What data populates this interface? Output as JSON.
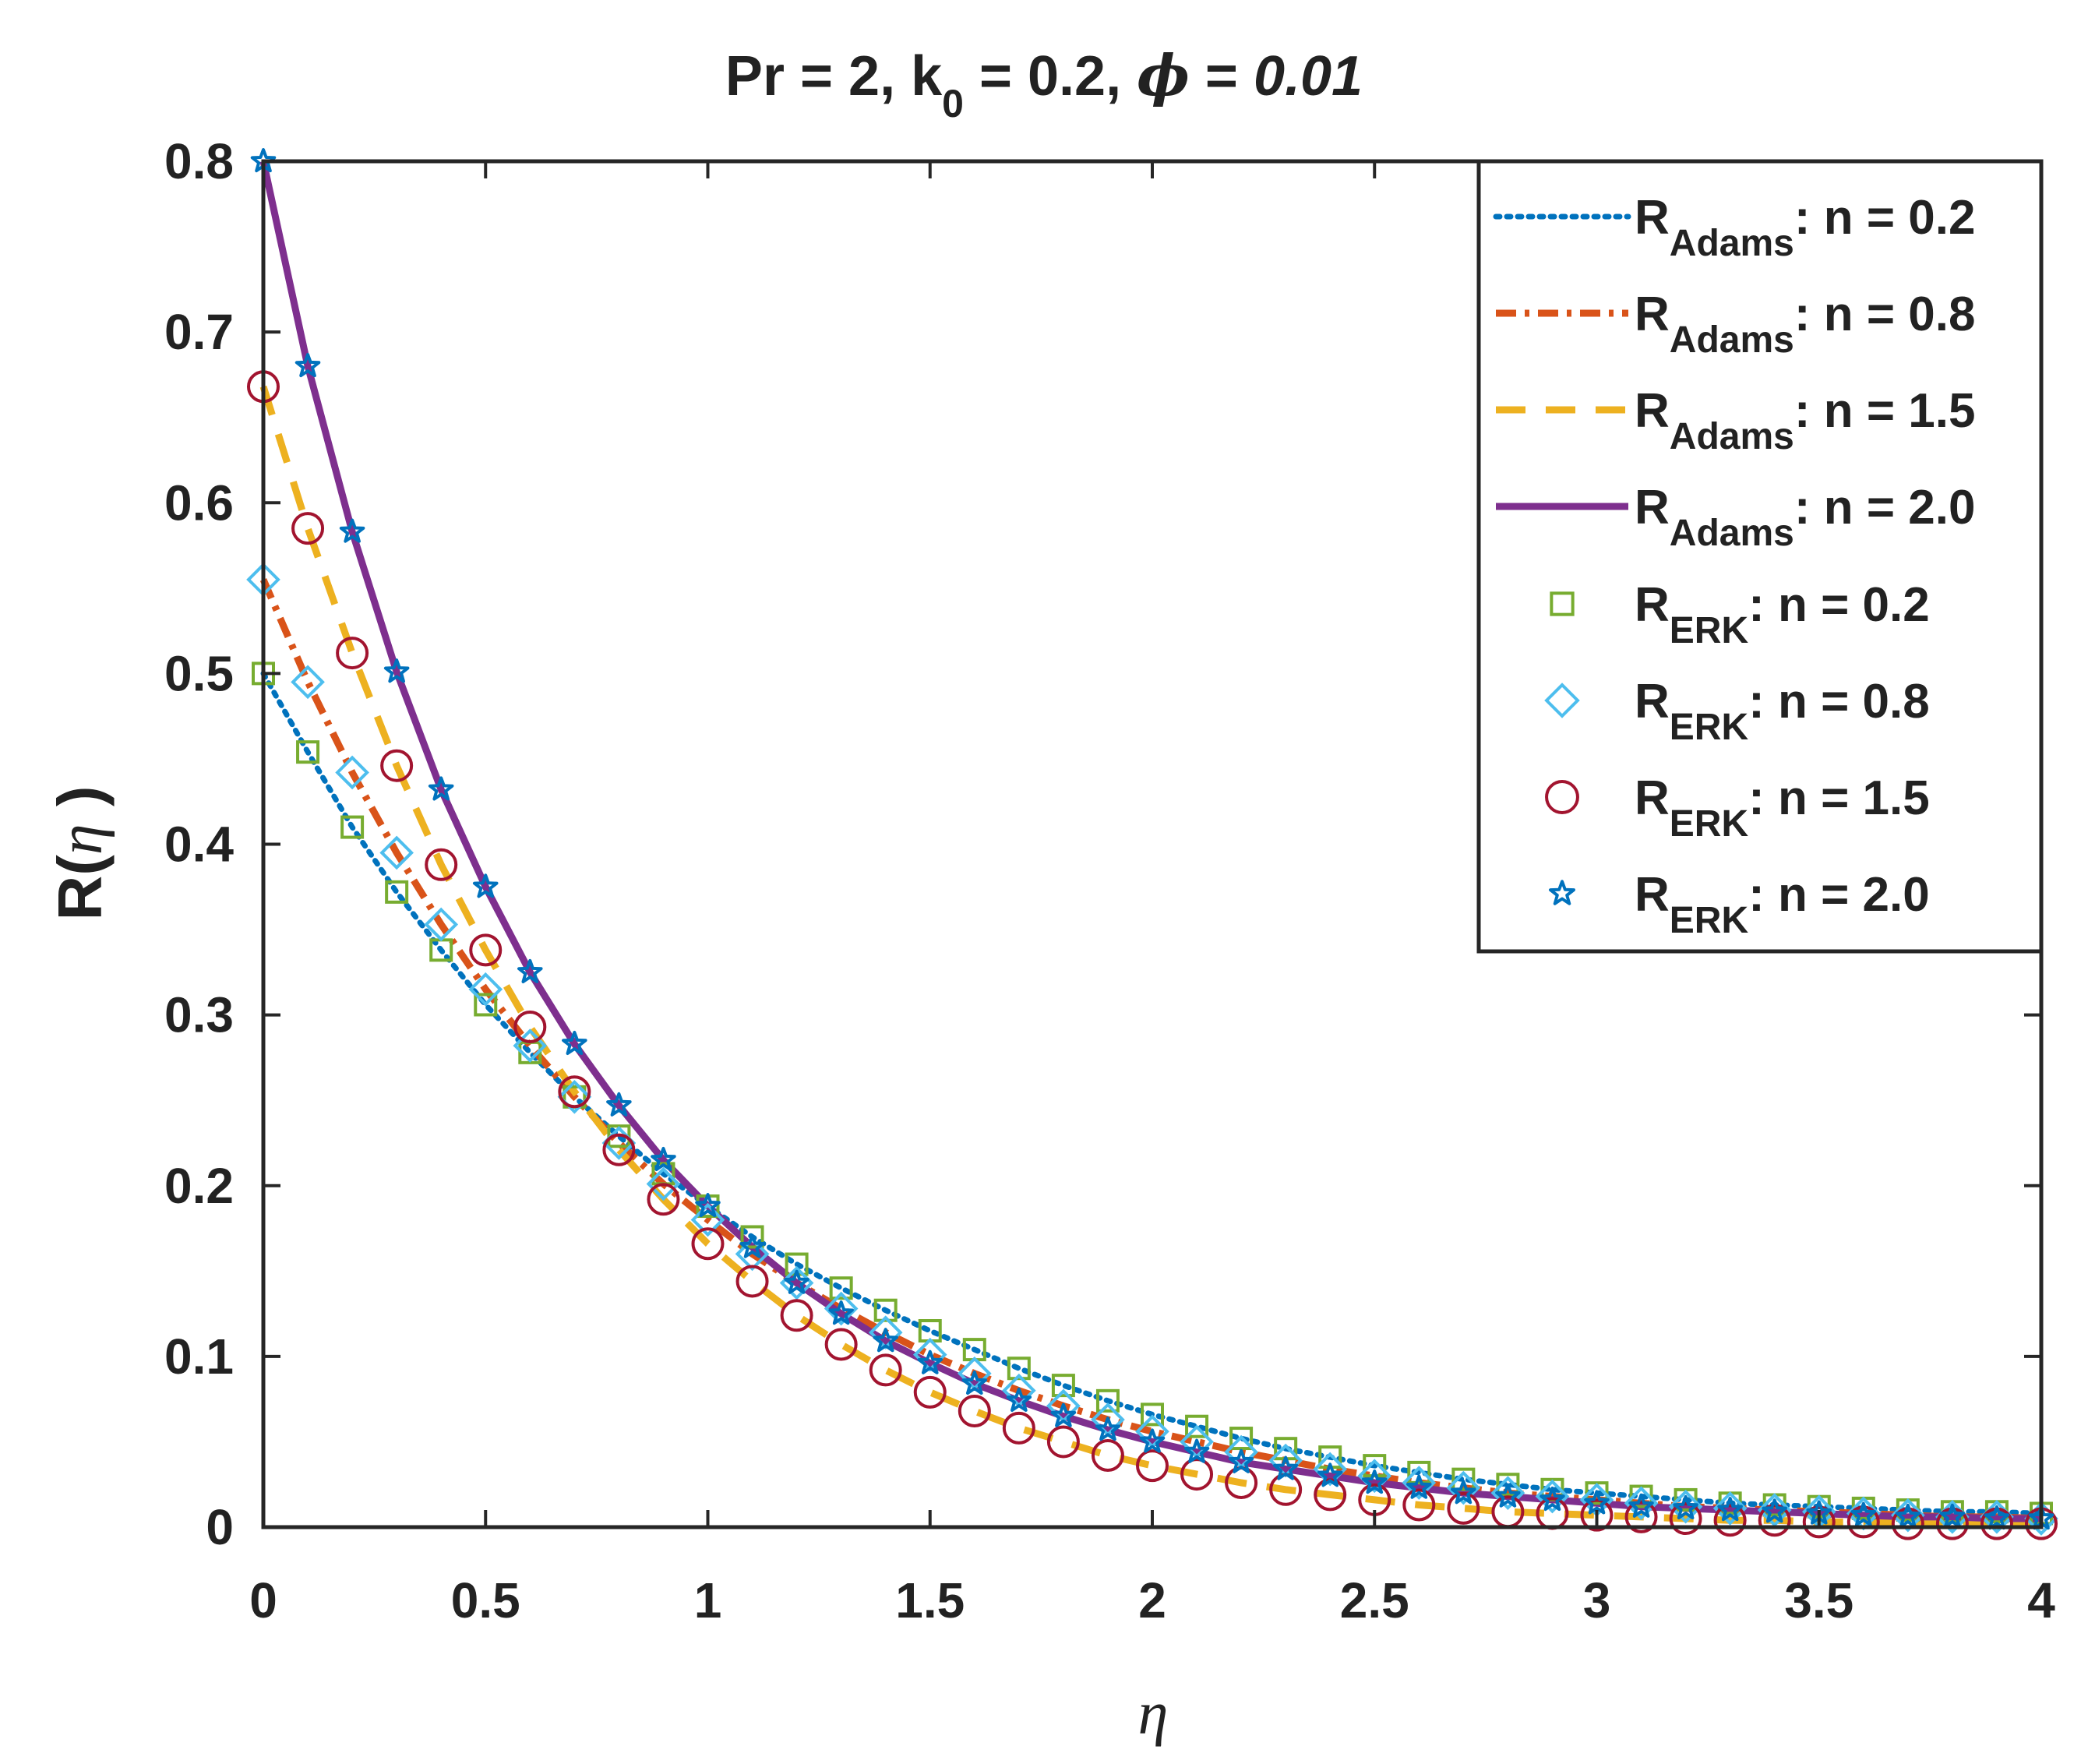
{
  "chart_data": {
    "type": "line",
    "title": {
      "part1": "Pr = 2, k",
      "sub": "0",
      "part2": " = 0.2, ",
      "symbol": "ϕ",
      "part3": " = ",
      "value": "0.01"
    },
    "xlabel": "η",
    "ylabel": {
      "prefix": "R(",
      "symbol": "η",
      "suffix": " )"
    },
    "xlim": [
      0,
      4
    ],
    "ylim": [
      0,
      0.8
    ],
    "xticks": [
      "0",
      "0.5",
      "1",
      "1.5",
      "2",
      "2.5",
      "3",
      "3.5",
      "4"
    ],
    "yticks": [
      "0",
      "0.1",
      "0.2",
      "0.3",
      "0.4",
      "0.5",
      "0.6",
      "0.7",
      "0.8"
    ],
    "legend_position": "top-right",
    "x": [
      0,
      0.1,
      0.2,
      0.3,
      0.4,
      0.5,
      0.6,
      0.7,
      0.8,
      0.9,
      1.0,
      1.1,
      1.2,
      1.3,
      1.4,
      1.5,
      1.6,
      1.7,
      1.8,
      1.9,
      2.0,
      2.1,
      2.2,
      2.3,
      2.4,
      2.5,
      2.6,
      2.7,
      2.8,
      2.9,
      3.0,
      3.1,
      3.2,
      3.3,
      3.4,
      3.5,
      3.6,
      3.7,
      3.8,
      3.9,
      4.0
    ],
    "series": [
      {
        "name": "R_Adams: n = 0.2",
        "label_main": "R",
        "label_sub": "Adams",
        "label_tail": ": n = 0.2",
        "kind": "line",
        "style": "dotted",
        "color": "#0072BD",
        "values": [
          0.5,
          0.454,
          0.41,
          0.372,
          0.338,
          0.306,
          0.278,
          0.252,
          0.229,
          0.207,
          0.188,
          0.17,
          0.154,
          0.14,
          0.127,
          0.115,
          0.104,
          0.093,
          0.083,
          0.074,
          0.066,
          0.059,
          0.052,
          0.046,
          0.041,
          0.036,
          0.032,
          0.028,
          0.025,
          0.022,
          0.02,
          0.018,
          0.016,
          0.014,
          0.013,
          0.012,
          0.011,
          0.01,
          0.009,
          0.009,
          0.008
        ]
      },
      {
        "name": "R_Adams: n = 0.8",
        "label_main": "R",
        "label_sub": "Adams",
        "label_tail": ": n = 0.8",
        "kind": "line",
        "style": "dashdot",
        "color": "#D95319",
        "values": [
          0.555,
          0.495,
          0.442,
          0.395,
          0.353,
          0.315,
          0.282,
          0.252,
          0.225,
          0.201,
          0.18,
          0.16,
          0.143,
          0.128,
          0.114,
          0.101,
          0.09,
          0.08,
          0.071,
          0.063,
          0.056,
          0.05,
          0.044,
          0.039,
          0.034,
          0.03,
          0.026,
          0.023,
          0.02,
          0.018,
          0.016,
          0.014,
          0.012,
          0.011,
          0.01,
          0.009,
          0.008,
          0.007,
          0.006,
          0.006,
          0.005
        ]
      },
      {
        "name": "R_Adams: n = 1.5",
        "label_main": "R",
        "label_sub": "Adams",
        "label_tail": ": n = 1.5",
        "kind": "line",
        "style": "dashed",
        "color": "#EDB120",
        "values": [
          0.668,
          0.585,
          0.512,
          0.446,
          0.388,
          0.338,
          0.293,
          0.255,
          0.221,
          0.192,
          0.166,
          0.144,
          0.124,
          0.107,
          0.092,
          0.079,
          0.068,
          0.058,
          0.05,
          0.042,
          0.036,
          0.031,
          0.026,
          0.022,
          0.019,
          0.016,
          0.013,
          0.011,
          0.009,
          0.008,
          0.007,
          0.006,
          0.005,
          0.004,
          0.004,
          0.003,
          0.003,
          0.002,
          0.002,
          0.002,
          0.002
        ]
      },
      {
        "name": "R_Adams: n = 2.0",
        "label_main": "R",
        "label_sub": "Adams",
        "label_tail": ": n = 2.0",
        "kind": "line",
        "style": "solid",
        "color": "#7E2F8E",
        "values": [
          0.8,
          0.68,
          0.583,
          0.501,
          0.432,
          0.375,
          0.325,
          0.283,
          0.247,
          0.215,
          0.188,
          0.164,
          0.143,
          0.125,
          0.109,
          0.096,
          0.084,
          0.074,
          0.065,
          0.057,
          0.05,
          0.044,
          0.038,
          0.034,
          0.03,
          0.026,
          0.023,
          0.02,
          0.018,
          0.016,
          0.014,
          0.012,
          0.011,
          0.01,
          0.009,
          0.008,
          0.007,
          0.006,
          0.006,
          0.005,
          0.005
        ]
      },
      {
        "name": "R_ERK: n = 0.2",
        "label_main": "R",
        "label_sub": "ERK",
        "label_tail": ": n = 0.2",
        "kind": "marker",
        "marker": "square",
        "color": "#77AC30",
        "ref": 0
      },
      {
        "name": "R_ERK: n = 0.8",
        "label_main": "R",
        "label_sub": "ERK",
        "label_tail": ": n = 0.8",
        "kind": "marker",
        "marker": "diamond",
        "color": "#4DBEEE",
        "ref": 1
      },
      {
        "name": "R_ERK: n = 1.5",
        "label_main": "R",
        "label_sub": "ERK",
        "label_tail": ": n = 1.5",
        "kind": "marker",
        "marker": "circle",
        "color": "#A2142F",
        "ref": 2
      },
      {
        "name": "R_ERK: n = 2.0",
        "label_main": "R",
        "label_sub": "ERK",
        "label_tail": ": n = 2.0",
        "kind": "marker",
        "marker": "pentagram",
        "color": "#0072BD",
        "ref": 3
      }
    ]
  }
}
